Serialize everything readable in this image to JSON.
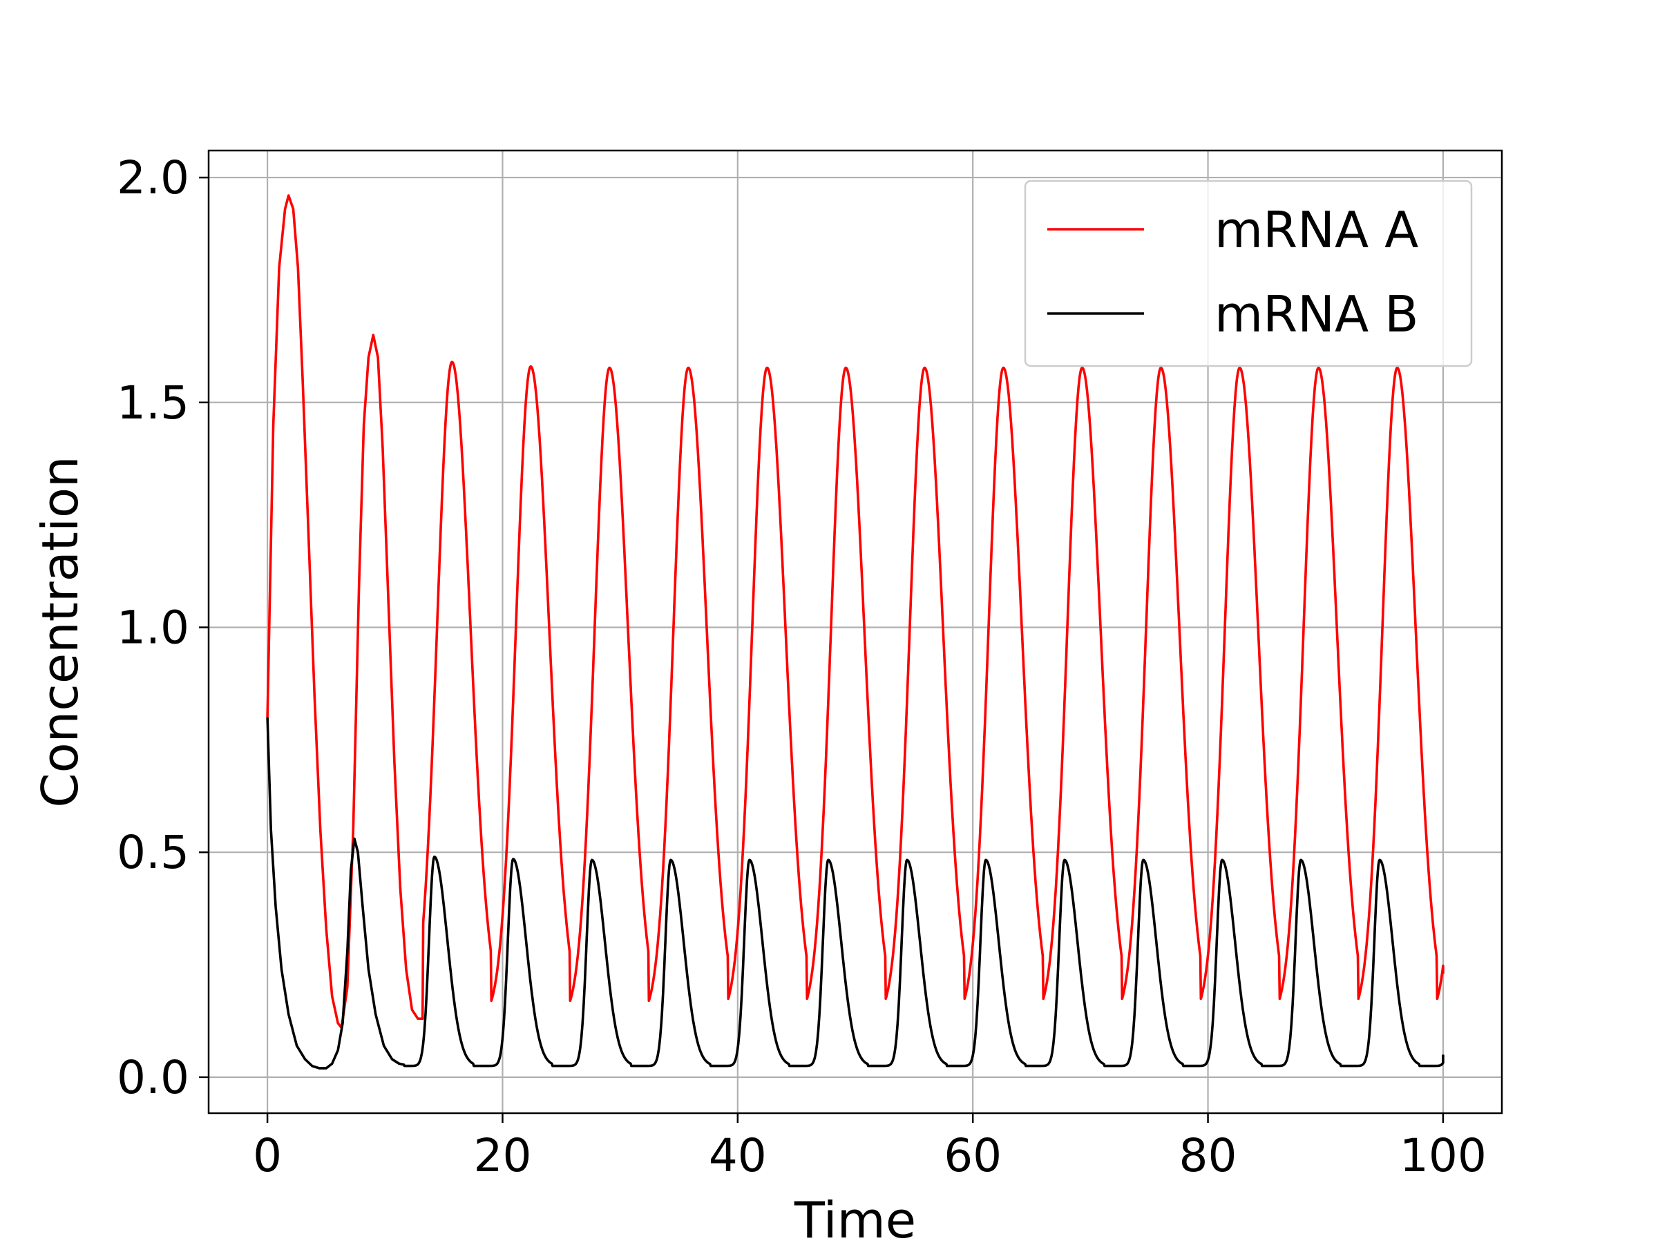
{
  "chart_data": {
    "type": "line",
    "title": "",
    "xlabel": "Time",
    "ylabel": "Concentration",
    "xlim": [
      -5,
      105
    ],
    "ylim": [
      -0.08,
      2.06
    ],
    "xticks": [
      0,
      20,
      40,
      60,
      80,
      100
    ],
    "xtick_labels": [
      "0",
      "20",
      "40",
      "60",
      "80",
      "100"
    ],
    "yticks": [
      0.0,
      0.5,
      1.0,
      1.5,
      2.0
    ],
    "ytick_labels": [
      "0.0",
      "0.5",
      "1.0",
      "1.5",
      "2.0"
    ],
    "grid": true,
    "legend_position": "top-right",
    "series": [
      {
        "name": "mRNA A",
        "color": "#ff0000",
        "x": [
          0,
          0.5,
          1,
          1.5,
          1.8,
          2.2,
          2.6,
          3.0,
          3.5,
          4.0,
          4.5,
          5.0,
          5.5,
          6.0,
          6.3,
          6.8,
          7.3,
          7.8,
          8.2,
          8.6,
          9.0,
          9.4,
          9.8,
          10.3,
          10.8,
          11.3,
          11.8,
          12.3,
          12.8,
          13.2
        ],
        "y": [
          0.8,
          1.45,
          1.8,
          1.93,
          1.96,
          1.93,
          1.8,
          1.55,
          1.2,
          0.85,
          0.55,
          0.33,
          0.18,
          0.12,
          0.11,
          0.2,
          0.55,
          1.1,
          1.45,
          1.6,
          1.65,
          1.6,
          1.4,
          1.05,
          0.7,
          0.42,
          0.24,
          0.15,
          0.13,
          0.13
        ]
      },
      {
        "name": "mRNA B",
        "color": "#000000",
        "x": [
          0,
          0.3,
          0.7,
          1.2,
          1.8,
          2.5,
          3.2,
          3.8,
          4.4,
          5.0,
          5.5,
          6.0,
          6.4,
          6.8,
          7.1,
          7.4,
          7.7,
          8.1,
          8.6,
          9.2,
          9.9,
          10.6,
          11.2,
          11.6
        ],
        "y": [
          0.8,
          0.55,
          0.38,
          0.24,
          0.14,
          0.07,
          0.04,
          0.025,
          0.02,
          0.02,
          0.03,
          0.06,
          0.12,
          0.28,
          0.46,
          0.53,
          0.5,
          0.38,
          0.24,
          0.14,
          0.07,
          0.04,
          0.03,
          0.028
        ]
      }
    ],
    "periodic_model": {
      "period": 6.7,
      "mRNA_A_peaks": [
        1.96,
        1.65,
        1.59,
        1.58,
        1.577
      ],
      "mRNA_A_trough": 0.13,
      "mRNA_B_peaks": [
        0.53,
        0.49,
        0.485,
        0.483
      ],
      "mRNA_B_trough": 0.025,
      "end_values": {
        "mRNA A": 0.23,
        "mRNA B": 0.05
      }
    }
  }
}
